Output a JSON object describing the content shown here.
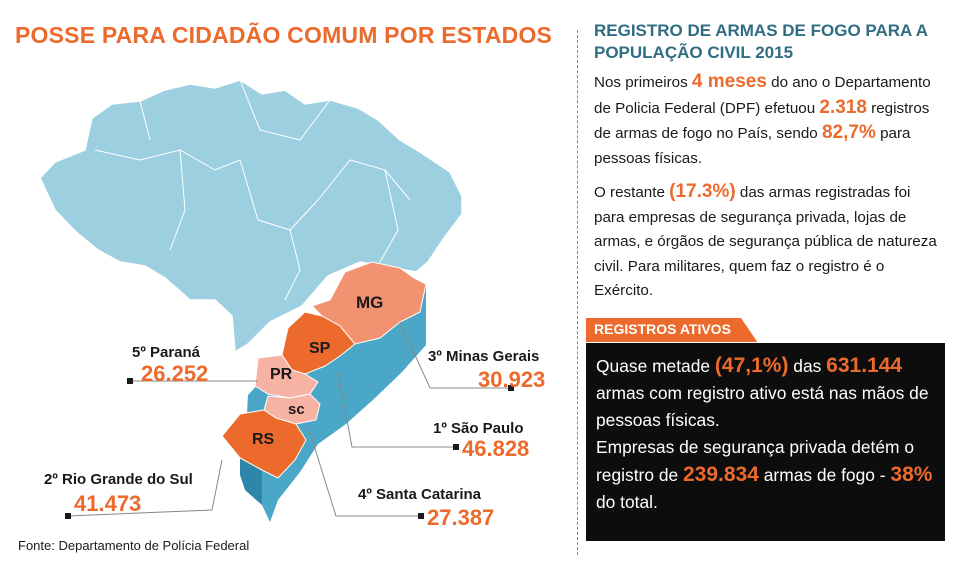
{
  "left": {
    "title": "POSSE PARA CIDADÃO COMUM POR ESTADOS",
    "source": "Fonte: Departamento de Polícia Federal"
  },
  "map": {
    "state_codes": {
      "mg": "MG",
      "sp": "SP",
      "pr": "PR",
      "sc": "sc",
      "rs": "RS"
    },
    "colors": {
      "brazil": "#9ccfe0",
      "side": "#4aa7c7",
      "orange": "#ec7a4e",
      "orange_light": "#f29270",
      "pink": "#f6b3a4",
      "accent": "#ec6a2c"
    }
  },
  "states": {
    "parana": {
      "label": "5º Paraná",
      "value": "26.252"
    },
    "minas": {
      "label": "3º Minas Gerais",
      "value": "30.923"
    },
    "saopaulo": {
      "label": "1º São Paulo",
      "value": "46.828"
    },
    "rs": {
      "label": "2º Rio Grande do Sul",
      "value": "41.473"
    },
    "sc": {
      "label": "4º Santa Catarina",
      "value": "27.387"
    }
  },
  "right": {
    "title": "REGISTRO DE ARMAS DE FOGO PARA A POPULAÇÃO CIVIL 2015",
    "p1": {
      "t1": "Nos primeiros ",
      "h1": "4 meses",
      "t2": " do ano o Departamento de Policia Federal (DPF) efetuou ",
      "h2": "2.318",
      "t3": " registros de armas de fogo no País, sendo ",
      "h3": "82,7%",
      "t4": " para pessoas físicas."
    },
    "p2": {
      "t1": "O restante ",
      "h1": "(17.3%)",
      "t2": " das armas registradas foi para empresas de segurança privada, lojas de armas, e órgãos de segurança pública de natureza civil. Para militares, quem faz o registro é o Exército."
    },
    "tab": "REGISTROS ATIVOS",
    "box": {
      "t1": "Quase metade ",
      "h1": "(47,1%)",
      "t2": " das ",
      "h2": "631.144",
      "t3": " armas com registro ativo está nas mãos de pessoas físicas.",
      "t4": "Empresas de segurança privada detém o registro de ",
      "h3": "239.834",
      "t5": " armas de fogo - ",
      "h4": "38%",
      "t6": " do total."
    }
  }
}
